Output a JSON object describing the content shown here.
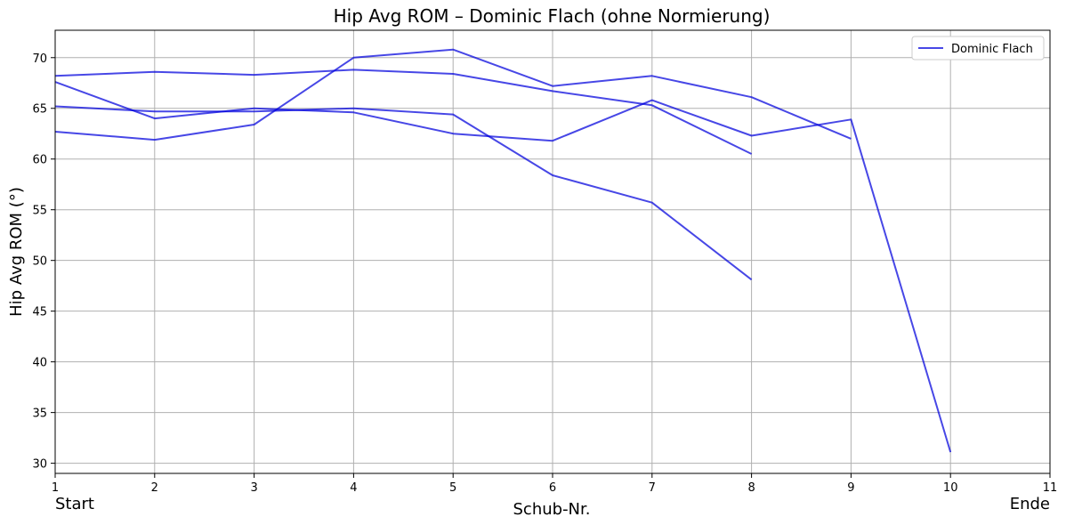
{
  "chart_data": {
    "type": "line",
    "title": "Hip Avg ROM – Dominic Flach (ohne Normierung)",
    "xlabel": "Schub-Nr.",
    "ylabel": "Hip Avg ROM (°)",
    "xlim": [
      1,
      11
    ],
    "ylim": [
      29,
      72.7
    ],
    "x_ticks": [
      1,
      2,
      3,
      4,
      5,
      6,
      7,
      8,
      9,
      10,
      11
    ],
    "y_ticks": [
      30,
      35,
      40,
      45,
      50,
      55,
      60,
      65,
      70
    ],
    "start_label": "Start",
    "end_label": "Ende",
    "grid": true,
    "legend_position": "upper right",
    "legend": [
      "Dominic Flach"
    ],
    "series_color": "#0000dd",
    "series": [
      {
        "name": "Dominic Flach",
        "x": [
          1,
          2,
          3,
          4,
          5,
          6,
          7,
          8,
          9,
          10
        ],
        "values": [
          67.6,
          64.0,
          65.0,
          64.6,
          62.5,
          61.8,
          65.8,
          62.3,
          63.9,
          31.1
        ]
      },
      {
        "name": "Dominic Flach",
        "x": [
          1,
          2,
          3,
          4,
          5,
          6,
          7,
          8,
          9
        ],
        "values": [
          68.2,
          68.6,
          68.3,
          68.8,
          68.4,
          66.7,
          65.3,
          60.5,
          null
        ]
      },
      {
        "name": "Dominic Flach",
        "x": [
          1,
          2,
          3,
          4,
          5,
          6,
          7,
          8,
          9
        ],
        "values": [
          62.7,
          61.9,
          63.4,
          70.0,
          70.8,
          67.2,
          68.2,
          66.1,
          62.0
        ]
      },
      {
        "name": "Dominic Flach",
        "x": [
          1,
          2,
          3,
          4,
          5,
          6,
          7,
          8
        ],
        "values": [
          65.2,
          64.7,
          64.7,
          65.0,
          64.4,
          58.4,
          55.7,
          48.1
        ]
      }
    ]
  }
}
